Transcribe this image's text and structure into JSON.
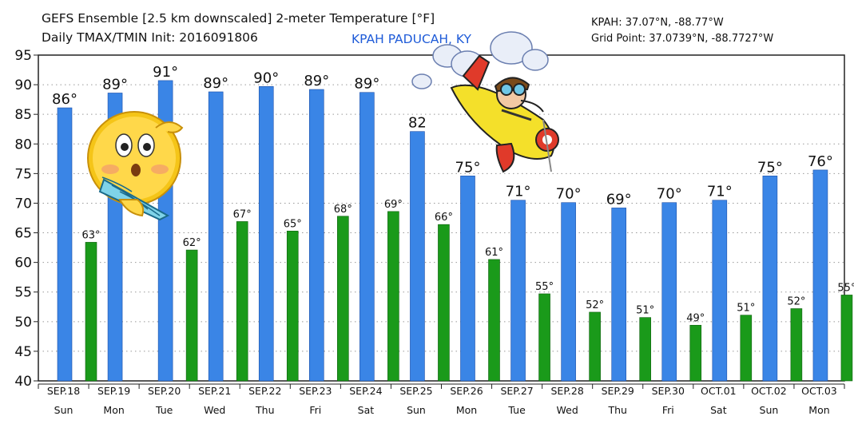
{
  "header": {
    "title": "GEFS Ensemble [2.5 km downscaled] 2-meter Temperature [°F]",
    "subtitle": "Daily TMAX/TMIN Init: 2016091806",
    "station_name": "KPAH PADUCAH, KY",
    "station_coords": "KPAH: 37.07°N, -88.77°W",
    "grid_point": "Grid Point: 37.0739°N, -88.7727°W"
  },
  "colors": {
    "tmax": "#3a85e6",
    "tmin": "#1a9a1a",
    "station_text": "#1e5bd8"
  },
  "decorations": [
    "emoji-face-with-fan-icon",
    "cartoon-pilot-airplane-icon"
  ],
  "chart_data": {
    "type": "bar",
    "ylim": [
      40,
      95
    ],
    "yticks": [
      40,
      45,
      50,
      55,
      60,
      65,
      70,
      75,
      80,
      85,
      90,
      95
    ],
    "grid": true,
    "categories": [
      "SEP.18",
      "SEP.19",
      "SEP.20",
      "SEP.21",
      "SEP.22",
      "SEP.23",
      "SEP.24",
      "SEP.25",
      "SEP.26",
      "SEP.27",
      "SEP.28",
      "SEP.29",
      "SEP.30",
      "OCT.01",
      "OCT.02",
      "OCT.03"
    ],
    "weekdays": [
      "Sun",
      "Mon",
      "Tue",
      "Wed",
      "Thu",
      "Fri",
      "Sat",
      "Sun",
      "Mon",
      "Tue",
      "Wed",
      "Thu",
      "Fri",
      "Sat",
      "Sun",
      "Mon"
    ],
    "series": [
      {
        "key": "tmax",
        "values": [
          86.1,
          88.6,
          90.7,
          88.8,
          89.7,
          89.2,
          88.7,
          82.1,
          74.6,
          70.5,
          70.1,
          69.2,
          70.1,
          70.5,
          74.6,
          75.6
        ],
        "labels": [
          "86°",
          "89°",
          "91°",
          "89°",
          "90°",
          "89°",
          "89°",
          "82",
          "75°",
          "71°",
          "70°",
          "69°",
          "70°",
          "71°",
          "75°",
          "76°"
        ]
      },
      {
        "key": "tmin",
        "values": [
          63.4,
          null,
          62.1,
          66.9,
          65.3,
          67.8,
          68.6,
          66.4,
          60.5,
          54.7,
          51.6,
          50.7,
          49.4,
          51.1,
          52.2,
          54.5
        ],
        "labels": [
          "63°",
          "",
          "62°",
          "67°",
          "65°",
          "68°",
          "69°",
          "66°",
          "61°",
          "55°",
          "52°",
          "51°",
          "49°",
          "51°",
          "52°",
          "55°"
        ]
      }
    ]
  }
}
